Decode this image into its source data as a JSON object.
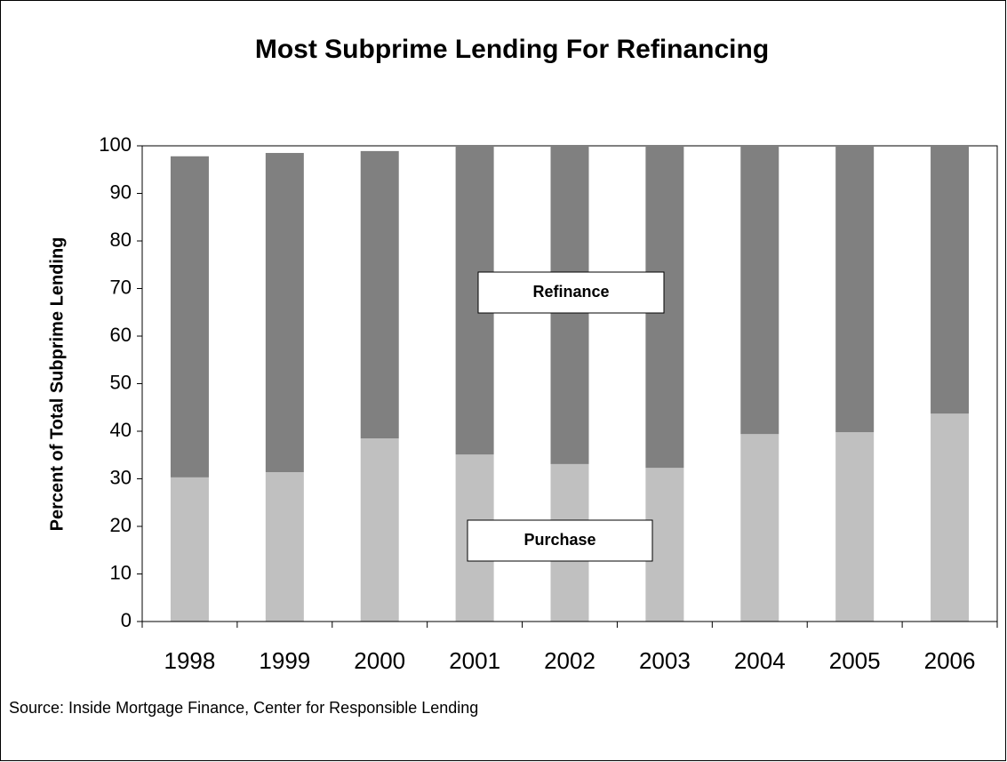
{
  "chart_data": {
    "type": "stacked_bar",
    "title": "Most Subprime Lending For Refinancing",
    "ylabel": "Percent of Total Subprime Lending",
    "source": "Source: Inside Mortgage Finance, Center for Responsible Lending",
    "categories": [
      "1998",
      "1999",
      "2000",
      "2001",
      "2002",
      "2003",
      "2004",
      "2005",
      "2006"
    ],
    "series": [
      {
        "name": "Purchase",
        "color": "#c0c0c0",
        "values": [
          30.3,
          31.4,
          38.5,
          35.1,
          33.1,
          32.3,
          39.4,
          39.8,
          43.7
        ]
      },
      {
        "name": "Refinance",
        "color": "#808080",
        "values": [
          67.5,
          67.1,
          60.4,
          64.9,
          66.9,
          67.7,
          60.6,
          60.2,
          56.3
        ]
      }
    ],
    "ylim": [
      0,
      100
    ],
    "yticks": [
      0,
      10,
      20,
      30,
      40,
      50,
      60,
      70,
      80,
      90,
      100
    ],
    "grid": false
  }
}
